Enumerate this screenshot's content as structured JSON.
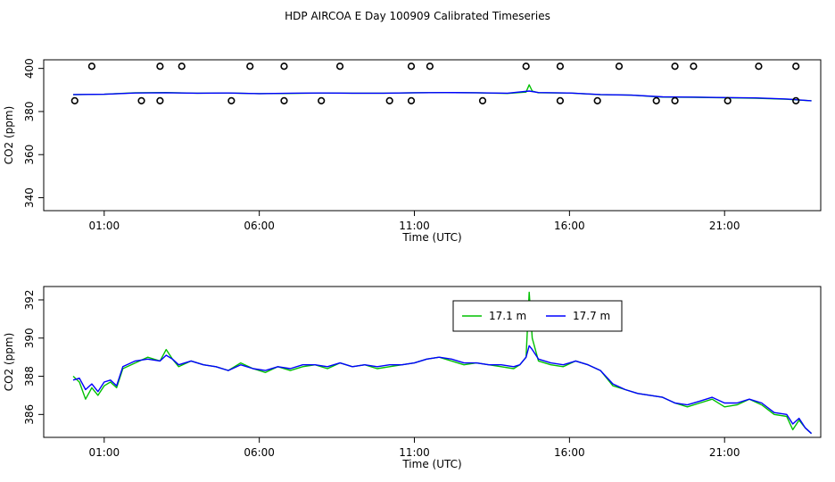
{
  "figure": {
    "title": "HDP AIRCOA E  Day 100909  Calibrated Timeseries",
    "colors": {
      "series_17_1": "#00c000",
      "series_17_7": "#0000ff",
      "points": "#000000",
      "axis": "#000000"
    }
  },
  "chart_data": [
    {
      "type": "line",
      "title": "",
      "xlabel": "Time (UTC)",
      "ylabel": "CO2 (ppm)",
      "xlim": [
        -0.95,
        24.1
      ],
      "ylim": [
        334,
        404
      ],
      "x_ticks": [
        1,
        6,
        11,
        16,
        21
      ],
      "x_tick_labels": [
        "01:00",
        "06:00",
        "11:00",
        "16:00",
        "21:00"
      ],
      "y_ticks": [
        340,
        360,
        380,
        400
      ],
      "y_tick_labels": [
        "340",
        "360",
        "380",
        "400"
      ],
      "grid": false,
      "legend": "none",
      "series": [
        {
          "color": "#00c000",
          "points": [
            [
              0,
              387.8
            ],
            [
              1,
              388
            ],
            [
              2,
              388.7
            ],
            [
              3,
              388.8
            ],
            [
              4,
              388.5
            ],
            [
              5,
              388.6
            ],
            [
              6,
              388.3
            ],
            [
              7,
              388.4
            ],
            [
              8,
              388.6
            ],
            [
              9,
              388.5
            ],
            [
              10,
              388.5
            ],
            [
              11,
              388.7
            ],
            [
              12,
              388.8
            ],
            [
              13,
              388.7
            ],
            [
              14,
              388.4
            ],
            [
              14.6,
              389
            ],
            [
              14.7,
              392.4
            ],
            [
              14.8,
              389.5
            ],
            [
              15,
              388.7
            ],
            [
              16,
              388.6
            ],
            [
              17,
              387.8
            ],
            [
              18,
              387.6
            ],
            [
              19,
              386.7
            ],
            [
              20,
              386.6
            ],
            [
              21,
              386.4
            ],
            [
              22,
              386.2
            ],
            [
              23,
              385.7
            ],
            [
              23.8,
              385
            ]
          ]
        },
        {
          "color": "#0000ff",
          "points": [
            [
              0,
              387.9
            ],
            [
              1,
              388
            ],
            [
              2,
              388.6
            ],
            [
              3,
              388.7
            ],
            [
              4,
              388.5
            ],
            [
              5,
              388.6
            ],
            [
              6,
              388.3
            ],
            [
              7,
              388.5
            ],
            [
              8,
              388.6
            ],
            [
              9,
              388.5
            ],
            [
              10,
              388.5
            ],
            [
              11,
              388.7
            ],
            [
              12,
              388.8
            ],
            [
              13,
              388.7
            ],
            [
              14,
              388.5
            ],
            [
              14.7,
              389.5
            ],
            [
              15,
              388.8
            ],
            [
              16,
              388.6
            ],
            [
              17,
              387.9
            ],
            [
              18,
              387.6
            ],
            [
              19,
              386.8
            ],
            [
              20,
              386.7
            ],
            [
              21,
              386.5
            ],
            [
              22,
              386.3
            ],
            [
              23,
              385.8
            ],
            [
              23.8,
              385
            ]
          ]
        },
        {
          "type": "scatter",
          "color": "#000000",
          "points": [
            [
              0.05,
              385
            ],
            [
              0.6,
              401
            ],
            [
              2.2,
              385
            ],
            [
              2.8,
              385
            ],
            [
              2.8,
              401
            ],
            [
              3.5,
              401
            ],
            [
              5.1,
              385
            ],
            [
              5.7,
              401
            ],
            [
              6.8,
              401
            ],
            [
              6.8,
              385
            ],
            [
              8,
              385
            ],
            [
              8.6,
              401
            ],
            [
              10.2,
              385
            ],
            [
              10.9,
              401
            ],
            [
              10.9,
              385
            ],
            [
              11.5,
              401
            ],
            [
              13.2,
              385
            ],
            [
              14.6,
              401
            ],
            [
              15.7,
              401
            ],
            [
              15.7,
              385
            ],
            [
              16.9,
              385
            ],
            [
              17.6,
              401
            ],
            [
              18.8,
              385
            ],
            [
              19.4,
              401
            ],
            [
              19.4,
              385
            ],
            [
              20,
              401
            ],
            [
              21.1,
              385
            ],
            [
              22.1,
              401
            ],
            [
              23.3,
              401
            ],
            [
              23.3,
              385
            ]
          ]
        }
      ]
    },
    {
      "type": "line",
      "title": "",
      "xlabel": "Time (UTC)",
      "ylabel": "CO2 (ppm)",
      "xlim": [
        -0.95,
        24.1
      ],
      "ylim": [
        384.8,
        392.7
      ],
      "x_ticks": [
        1,
        6,
        11,
        16,
        21
      ],
      "x_tick_labels": [
        "01:00",
        "06:00",
        "11:00",
        "16:00",
        "21:00"
      ],
      "y_ticks": [
        386,
        388,
        390,
        392
      ],
      "y_tick_labels": [
        "386",
        "388",
        "390",
        "392"
      ],
      "grid": false,
      "legend": "top-center",
      "series": [
        {
          "name": "17.1 m",
          "color": "#00c000",
          "points": [
            [
              0,
              388
            ],
            [
              0.2,
              387.7
            ],
            [
              0.4,
              386.8
            ],
            [
              0.6,
              387.4
            ],
            [
              0.8,
              387
            ],
            [
              1,
              387.5
            ],
            [
              1.2,
              387.7
            ],
            [
              1.4,
              387.4
            ],
            [
              1.6,
              388.4
            ],
            [
              2,
              388.7
            ],
            [
              2.4,
              389
            ],
            [
              2.8,
              388.8
            ],
            [
              3,
              389.4
            ],
            [
              3.2,
              388.9
            ],
            [
              3.4,
              388.5
            ],
            [
              3.8,
              388.8
            ],
            [
              4.2,
              388.6
            ],
            [
              4.6,
              388.5
            ],
            [
              5,
              388.3
            ],
            [
              5.4,
              388.7
            ],
            [
              5.8,
              388.4
            ],
            [
              6.2,
              388.2
            ],
            [
              6.6,
              388.5
            ],
            [
              7,
              388.3
            ],
            [
              7.4,
              388.5
            ],
            [
              7.8,
              388.6
            ],
            [
              8.2,
              388.4
            ],
            [
              8.6,
              388.7
            ],
            [
              9,
              388.5
            ],
            [
              9.4,
              388.6
            ],
            [
              9.8,
              388.4
            ],
            [
              10.2,
              388.5
            ],
            [
              10.6,
              388.6
            ],
            [
              11,
              388.7
            ],
            [
              11.4,
              388.9
            ],
            [
              11.8,
              389
            ],
            [
              12.2,
              388.8
            ],
            [
              12.6,
              388.6
            ],
            [
              13,
              388.7
            ],
            [
              13.4,
              388.6
            ],
            [
              13.8,
              388.5
            ],
            [
              14.2,
              388.4
            ],
            [
              14.4,
              388.6
            ],
            [
              14.6,
              389
            ],
            [
              14.7,
              392.4
            ],
            [
              14.8,
              390
            ],
            [
              15,
              388.8
            ],
            [
              15.4,
              388.6
            ],
            [
              15.8,
              388.5
            ],
            [
              16.2,
              388.8
            ],
            [
              16.6,
              388.6
            ],
            [
              17,
              388.3
            ],
            [
              17.4,
              387.5
            ],
            [
              17.8,
              387.3
            ],
            [
              18.2,
              387.1
            ],
            [
              18.6,
              387
            ],
            [
              19,
              386.9
            ],
            [
              19.4,
              386.6
            ],
            [
              19.8,
              386.4
            ],
            [
              20.2,
              386.6
            ],
            [
              20.6,
              386.8
            ],
            [
              21,
              386.4
            ],
            [
              21.4,
              386.5
            ],
            [
              21.8,
              386.8
            ],
            [
              22.2,
              386.5
            ],
            [
              22.6,
              386
            ],
            [
              23,
              385.9
            ],
            [
              23.2,
              385.2
            ],
            [
              23.4,
              385.7
            ],
            [
              23.6,
              385.3
            ],
            [
              23.8,
              385
            ]
          ]
        },
        {
          "name": "17.7 m",
          "color": "#0000ff",
          "points": [
            [
              0,
              387.8
            ],
            [
              0.2,
              387.9
            ],
            [
              0.4,
              387.3
            ],
            [
              0.6,
              387.6
            ],
            [
              0.8,
              387.2
            ],
            [
              1,
              387.7
            ],
            [
              1.2,
              387.8
            ],
            [
              1.4,
              387.5
            ],
            [
              1.6,
              388.5
            ],
            [
              2,
              388.8
            ],
            [
              2.4,
              388.9
            ],
            [
              2.8,
              388.8
            ],
            [
              3,
              389.1
            ],
            [
              3.2,
              388.9
            ],
            [
              3.4,
              388.6
            ],
            [
              3.8,
              388.8
            ],
            [
              4.2,
              388.6
            ],
            [
              4.6,
              388.5
            ],
            [
              5,
              388.3
            ],
            [
              5.4,
              388.6
            ],
            [
              5.8,
              388.4
            ],
            [
              6.2,
              388.3
            ],
            [
              6.6,
              388.5
            ],
            [
              7,
              388.4
            ],
            [
              7.4,
              388.6
            ],
            [
              7.8,
              388.6
            ],
            [
              8.2,
              388.5
            ],
            [
              8.6,
              388.7
            ],
            [
              9,
              388.5
            ],
            [
              9.4,
              388.6
            ],
            [
              9.8,
              388.5
            ],
            [
              10.2,
              388.6
            ],
            [
              10.6,
              388.6
            ],
            [
              11,
              388.7
            ],
            [
              11.4,
              388.9
            ],
            [
              11.8,
              389
            ],
            [
              12.2,
              388.9
            ],
            [
              12.6,
              388.7
            ],
            [
              13,
              388.7
            ],
            [
              13.4,
              388.6
            ],
            [
              13.8,
              388.6
            ],
            [
              14.2,
              388.5
            ],
            [
              14.4,
              388.6
            ],
            [
              14.6,
              389
            ],
            [
              14.7,
              389.6
            ],
            [
              14.8,
              389.4
            ],
            [
              15,
              388.9
            ],
            [
              15.4,
              388.7
            ],
            [
              15.8,
              388.6
            ],
            [
              16.2,
              388.8
            ],
            [
              16.6,
              388.6
            ],
            [
              17,
              388.3
            ],
            [
              17.4,
              387.6
            ],
            [
              17.8,
              387.3
            ],
            [
              18.2,
              387.1
            ],
            [
              18.6,
              387
            ],
            [
              19,
              386.9
            ],
            [
              19.4,
              386.6
            ],
            [
              19.8,
              386.5
            ],
            [
              20.2,
              386.7
            ],
            [
              20.6,
              386.9
            ],
            [
              21,
              386.6
            ],
            [
              21.4,
              386.6
            ],
            [
              21.8,
              386.8
            ],
            [
              22.2,
              386.6
            ],
            [
              22.6,
              386.1
            ],
            [
              23,
              386
            ],
            [
              23.2,
              385.5
            ],
            [
              23.4,
              385.8
            ],
            [
              23.6,
              385.3
            ],
            [
              23.8,
              385
            ]
          ]
        }
      ]
    }
  ]
}
